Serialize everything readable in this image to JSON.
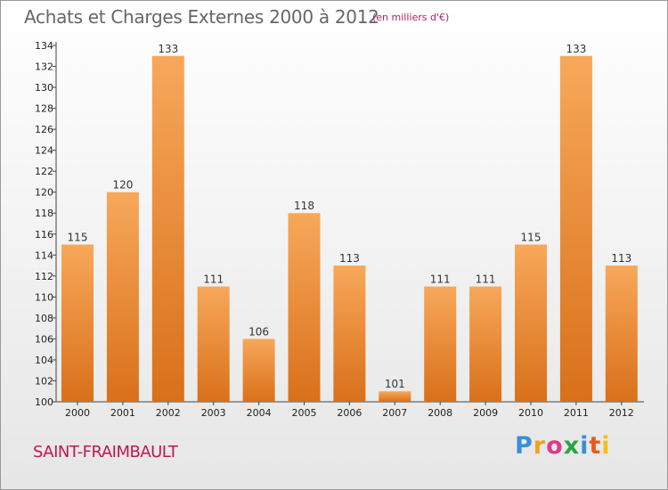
{
  "title": "Achats et Charges Externes 2000 à 2012",
  "subtitle": "(en milliers d'€)",
  "commune": "SAINT-FRAIMBAULT",
  "logo": {
    "letters": [
      "P",
      "r",
      "o",
      "x",
      "i",
      "t",
      "i"
    ],
    "colors": [
      "#3a8fd6",
      "#f0a21a",
      "#e23a8a",
      "#2aa34a",
      "#3a8fd6",
      "#e85a1a",
      "#f0c020"
    ]
  },
  "colors": {
    "bar_light": "#f7a85a",
    "bar_dark": "#d9701a",
    "title": "#666666",
    "commune": "#c0174e"
  },
  "chart_data": {
    "type": "bar",
    "title": "Achats et Charges Externes 2000 à 2012",
    "subtitle": "(en milliers d'€)",
    "categories": [
      "2000",
      "2001",
      "2002",
      "2003",
      "2004",
      "2005",
      "2006",
      "2007",
      "2008",
      "2009",
      "2010",
      "2011",
      "2012"
    ],
    "values": [
      115,
      120,
      133,
      111,
      106,
      118,
      113,
      101,
      111,
      111,
      115,
      133,
      113
    ],
    "ylim": [
      100,
      134
    ],
    "ytick_step": 2,
    "grid": false
  }
}
